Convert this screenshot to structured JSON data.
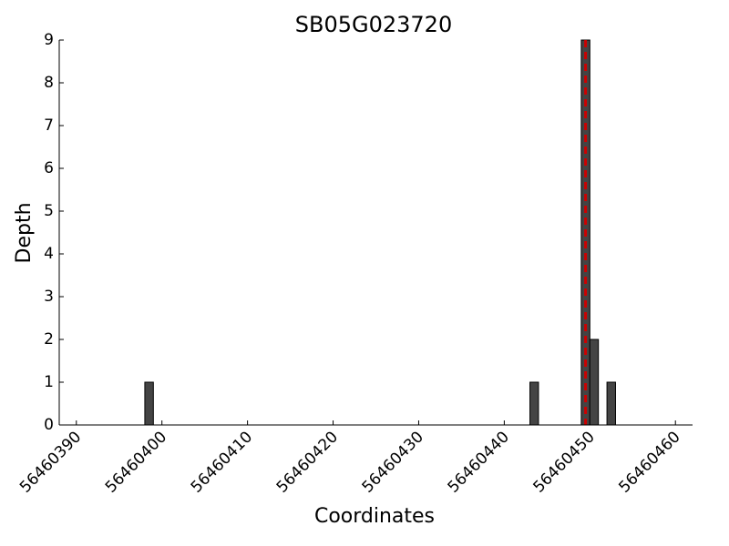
{
  "chart_data": {
    "type": "bar",
    "title": "SB05G023720",
    "xlabel": "Coordinates",
    "ylabel": "Depth",
    "x": [
      56460398,
      56460443,
      56460449,
      56460450,
      56460452
    ],
    "values": [
      1,
      1,
      9,
      2,
      1
    ],
    "bar_width": 1,
    "color": "#444444",
    "vline": 56460449.5,
    "vline_color": "#cc0000",
    "xlim": [
      56460388,
      56460462
    ],
    "xticks": [
      56460390,
      56460400,
      56460410,
      56460420,
      56460430,
      56460440,
      56460450,
      56460460
    ],
    "ylim": [
      0,
      9
    ],
    "yticks": [
      0,
      1,
      2,
      3,
      4,
      5,
      6,
      7,
      8,
      9
    ]
  }
}
